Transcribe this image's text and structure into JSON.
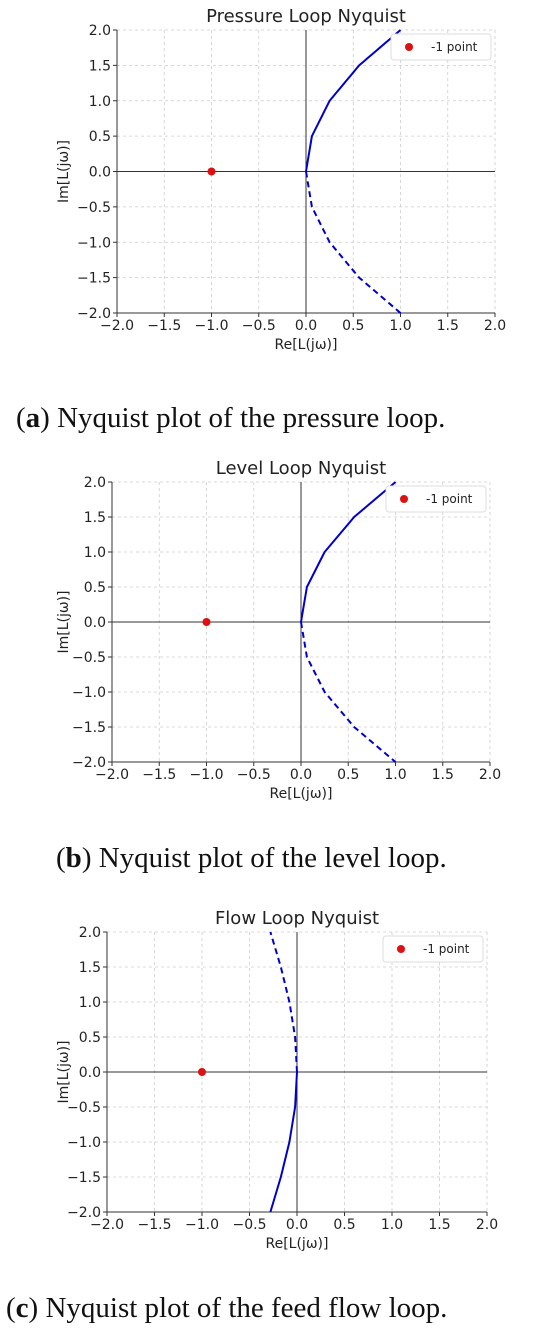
{
  "chart_data": [
    {
      "type": "line",
      "title": "Pressure Loop Nyquist",
      "xlabel": "Re[L(jω)]",
      "ylabel": "Im[L(jω)]",
      "xlim": [
        -2.0,
        2.0
      ],
      "ylim": [
        -2.0,
        2.0
      ],
      "xticks": [
        "−2.0",
        "−1.5",
        "−1.0",
        "−0.5",
        "0.0",
        "0.5",
        "1.0",
        "1.5",
        "2.0"
      ],
      "yticks": [
        "2.0",
        "1.5",
        "1.0",
        "0.5",
        "0.0",
        "−0.5",
        "−1.0",
        "−1.5",
        "−2.0"
      ],
      "grid": true,
      "legend_position": "top-right",
      "legend": [
        "-1 point"
      ],
      "series": [
        {
          "style": "solid",
          "color": "#0000cc",
          "x": [
            0.0,
            0.0625,
            0.25,
            0.5625,
            1.0
          ],
          "y": [
            0.0,
            0.5,
            1.0,
            1.5,
            2.0
          ]
        },
        {
          "style": "dashed",
          "color": "#0000cc",
          "x": [
            0.0,
            0.0625,
            0.25,
            0.5625,
            1.0
          ],
          "y": [
            0.0,
            -0.5,
            -1.0,
            -1.5,
            -2.0
          ]
        },
        {
          "name": "-1 point",
          "style": "marker",
          "color": "#dd1111",
          "x": [
            -1.0
          ],
          "y": [
            0.0
          ]
        }
      ],
      "caption_label": "a",
      "caption_text": "Nyquist plot of the pressure loop."
    },
    {
      "type": "line",
      "title": "Level Loop Nyquist",
      "xlabel": "Re[L(jω)]",
      "ylabel": "Im[L(jω)]",
      "xlim": [
        -2.0,
        2.0
      ],
      "ylim": [
        -2.0,
        2.0
      ],
      "xticks": [
        "−2.0",
        "−1.5",
        "−1.0",
        "−0.5",
        "0.0",
        "0.5",
        "1.0",
        "1.5",
        "2.0"
      ],
      "yticks": [
        "2.0",
        "1.5",
        "1.0",
        "0.5",
        "0.0",
        "−0.5",
        "−1.0",
        "−1.5",
        "−2.0"
      ],
      "grid": true,
      "legend_position": "top-right",
      "legend": [
        "-1 point"
      ],
      "series": [
        {
          "style": "solid",
          "color": "#0000cc",
          "x": [
            0.0,
            0.0625,
            0.25,
            0.5625,
            1.0
          ],
          "y": [
            0.0,
            0.5,
            1.0,
            1.5,
            2.0
          ]
        },
        {
          "style": "dashed",
          "color": "#0000cc",
          "x": [
            0.0,
            0.0625,
            0.25,
            0.5625,
            1.0
          ],
          "y": [
            0.0,
            -0.5,
            -1.0,
            -1.5,
            -2.0
          ]
        },
        {
          "name": "-1 point",
          "style": "marker",
          "color": "#dd1111",
          "x": [
            -1.0
          ],
          "y": [
            0.0
          ]
        }
      ],
      "caption_label": "b",
      "caption_text": "Nyquist plot of the level loop."
    },
    {
      "type": "line",
      "title": "Flow Loop Nyquist",
      "xlabel": "Re[L(jω)]",
      "ylabel": "Im[L(jω)]",
      "xlim": [
        -2.0,
        2.0
      ],
      "ylim": [
        -2.0,
        2.0
      ],
      "xticks": [
        "−2.0",
        "−1.5",
        "−1.0",
        "−0.5",
        "0.0",
        "0.5",
        "1.0",
        "1.5",
        "2.0"
      ],
      "yticks": [
        "2.0",
        "1.5",
        "1.0",
        "0.5",
        "0.0",
        "−0.5",
        "−1.0",
        "−1.5",
        "−2.0"
      ],
      "grid": true,
      "legend_position": "top-right",
      "legend": [
        "-1 point"
      ],
      "series": [
        {
          "style": "dashed",
          "color": "#0000cc",
          "x": [
            0.0,
            -0.02,
            -0.08,
            -0.17,
            -0.28
          ],
          "y": [
            0.0,
            0.5,
            1.0,
            1.5,
            2.0
          ]
        },
        {
          "style": "solid",
          "color": "#0000cc",
          "x": [
            0.0,
            -0.02,
            -0.08,
            -0.17,
            -0.28
          ],
          "y": [
            0.0,
            -0.5,
            -1.0,
            -1.5,
            -2.0
          ]
        },
        {
          "name": "-1 point",
          "style": "marker",
          "color": "#dd1111",
          "x": [
            -1.0
          ],
          "y": [
            0.0
          ]
        }
      ],
      "caption_label": "c",
      "caption_text": "Nyquist plot of the feed flow loop."
    }
  ]
}
